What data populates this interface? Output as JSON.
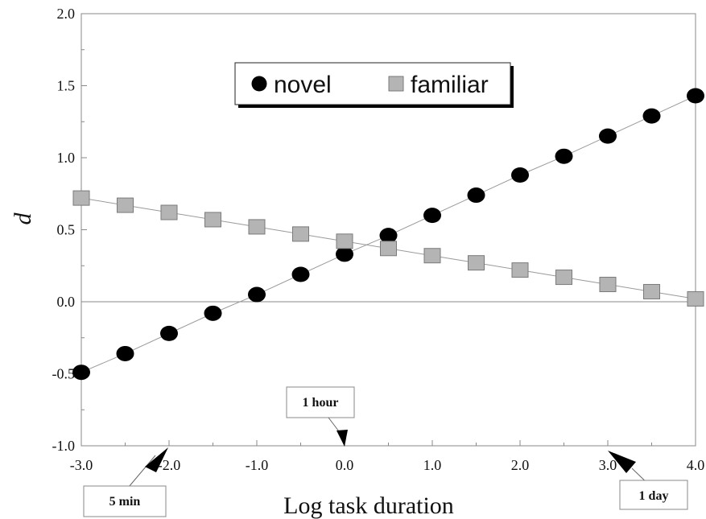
{
  "chart_data": {
    "type": "line",
    "xlabel": "Log task duration",
    "ylabel": "d",
    "xlim": [
      -3.0,
      4.0
    ],
    "ylim": [
      -1.0,
      2.0
    ],
    "x_ticks": [
      "-3.0",
      "-2.0",
      "-1.0",
      "0.0",
      "1.0",
      "2.0",
      "3.0",
      "4.0"
    ],
    "y_ticks": [
      "-1.0",
      "-0.5",
      "0.0",
      "0.5",
      "1.0",
      "1.5",
      "2.0"
    ],
    "grid": false,
    "legend_position": "top-center",
    "x": [
      -3.0,
      -2.5,
      -2.0,
      -1.5,
      -1.0,
      -0.5,
      0.0,
      0.5,
      1.0,
      1.5,
      2.0,
      2.5,
      3.0,
      3.5,
      4.0
    ],
    "series": [
      {
        "name": "novel",
        "marker": "circle",
        "color": "#000000",
        "values": [
          -0.49,
          -0.36,
          -0.22,
          -0.08,
          0.05,
          0.19,
          0.33,
          0.46,
          0.6,
          0.74,
          0.88,
          1.01,
          1.15,
          1.29,
          1.43
        ]
      },
      {
        "name": "familiar",
        "marker": "square",
        "color": "#b4b4b4",
        "values": [
          0.72,
          0.67,
          0.62,
          0.57,
          0.52,
          0.47,
          0.42,
          0.37,
          0.32,
          0.27,
          0.22,
          0.17,
          0.12,
          0.07,
          0.02
        ]
      }
    ],
    "annotations": [
      {
        "text": "5 min",
        "x": -2.0
      },
      {
        "text": "1 hour",
        "x": 0.0
      },
      {
        "text": "1 day",
        "x": 3.0
      }
    ]
  }
}
